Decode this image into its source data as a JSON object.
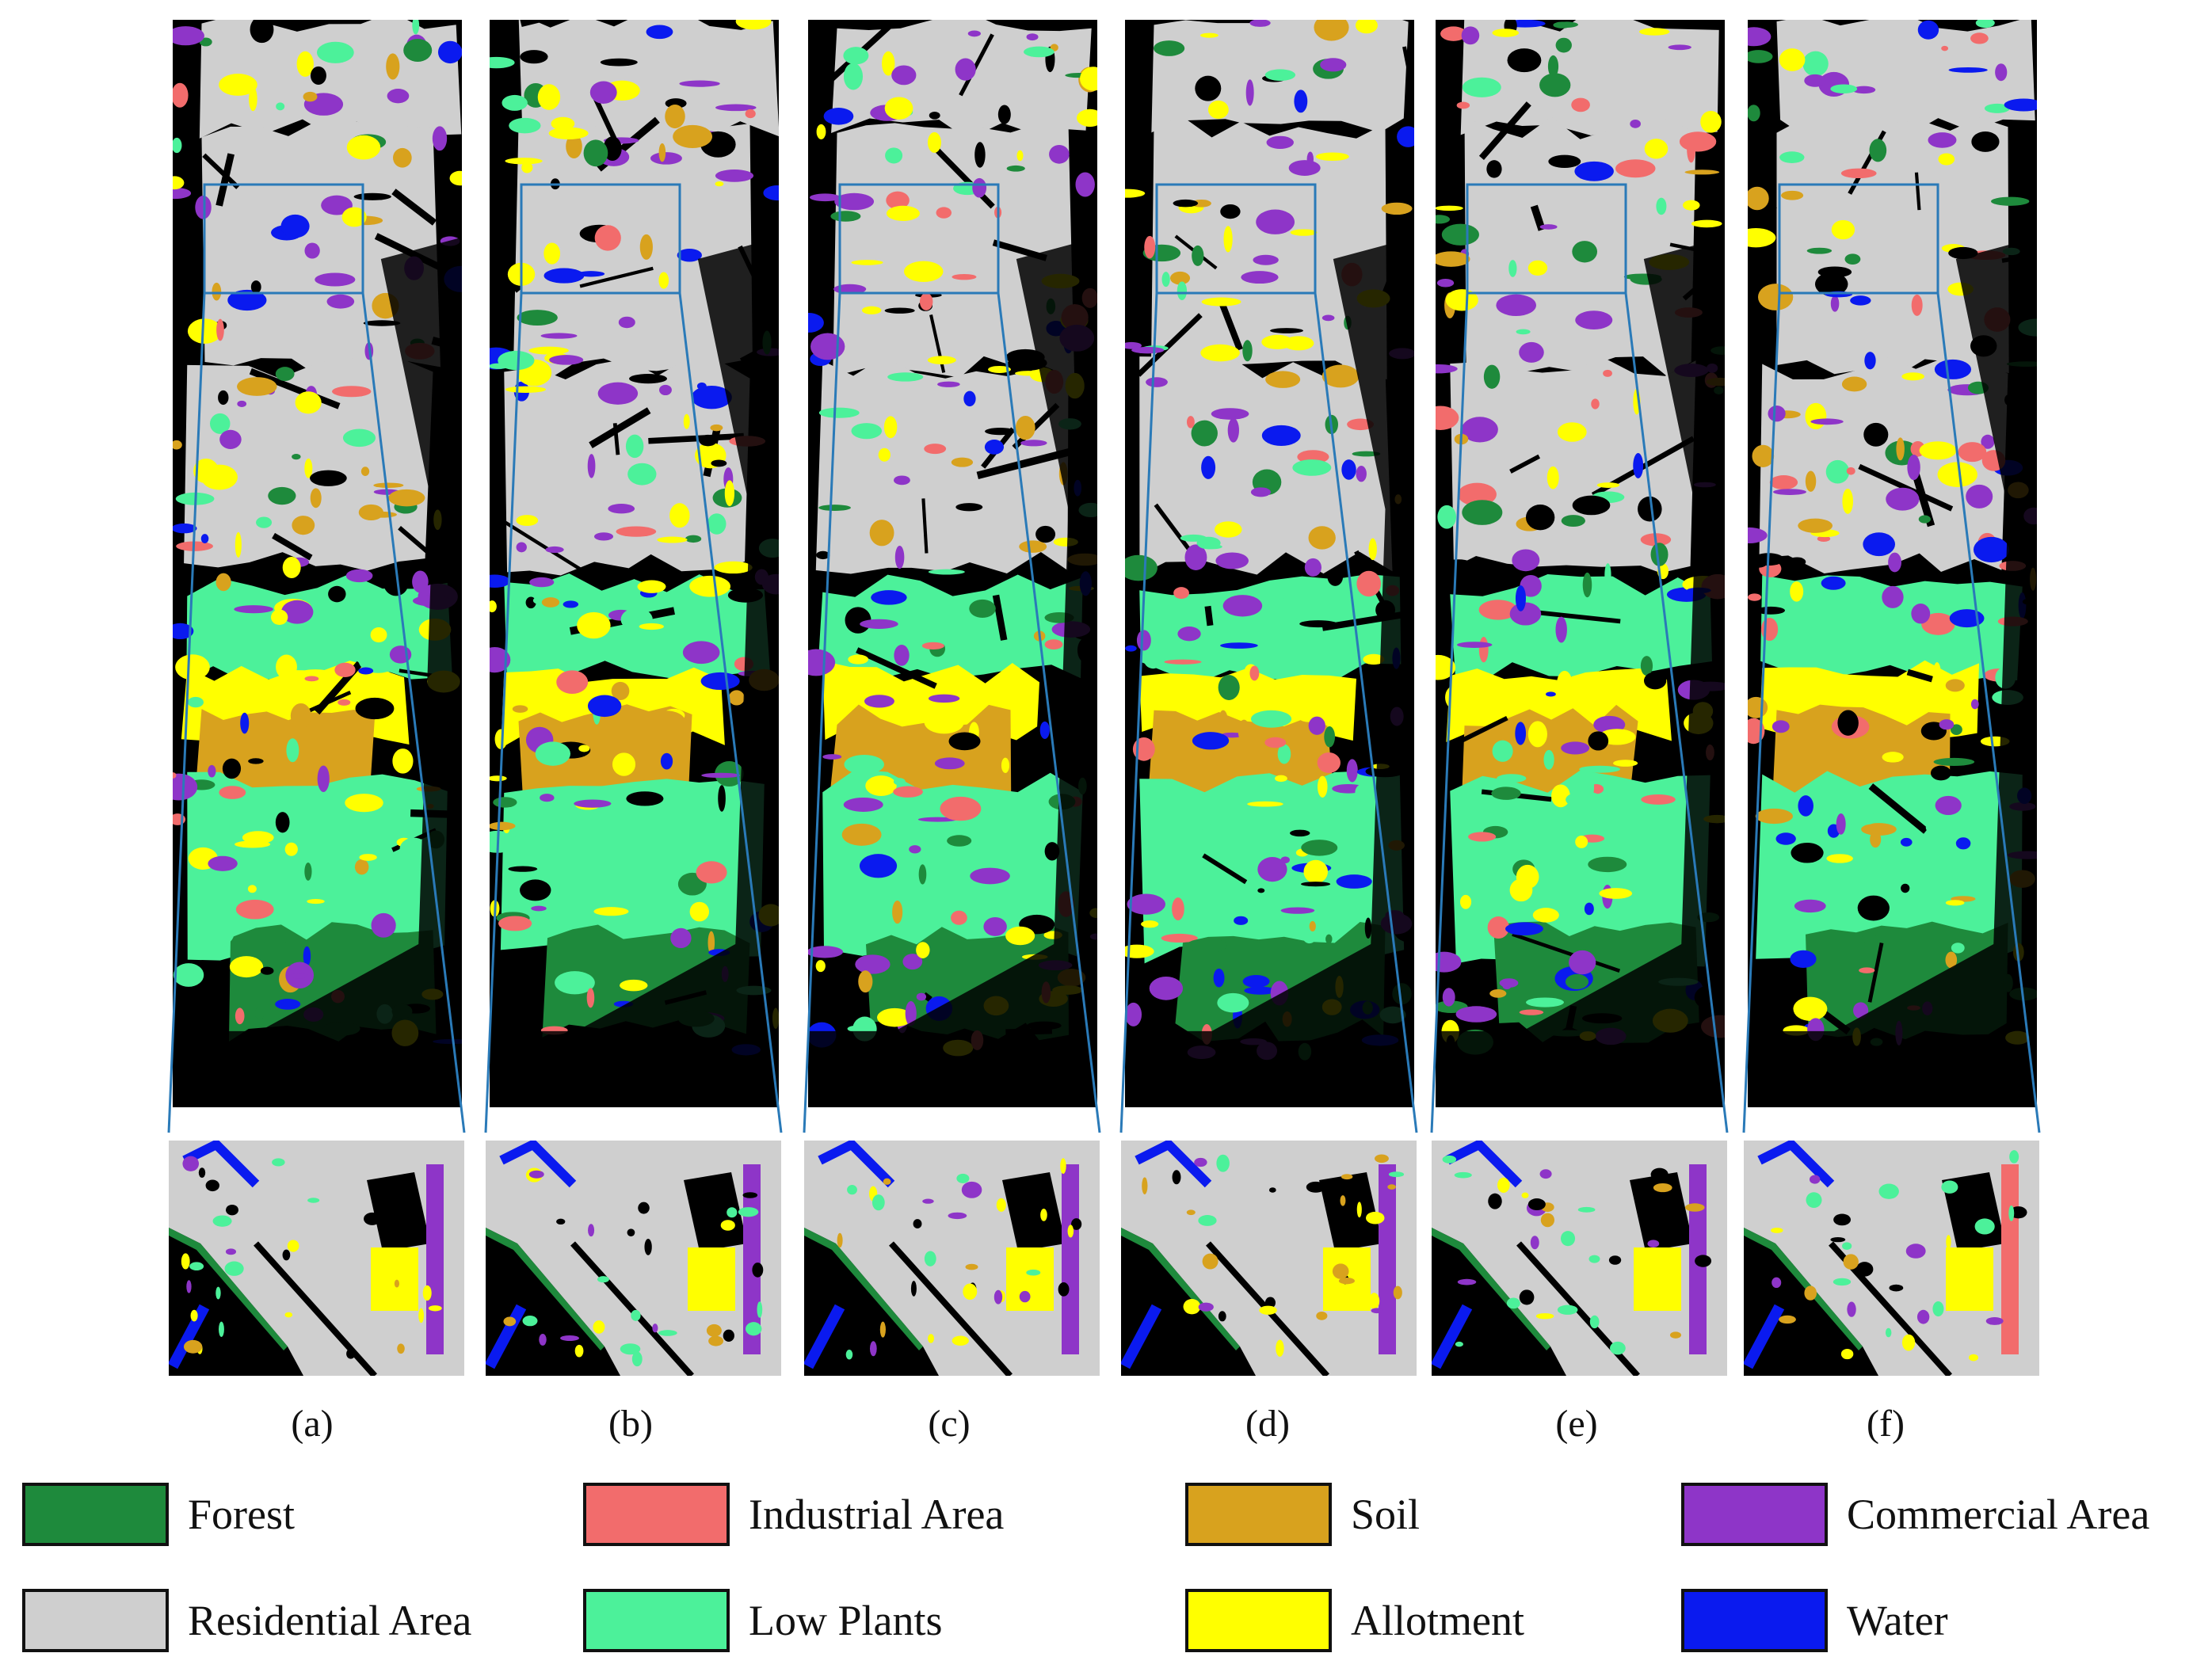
{
  "colors": {
    "forest": "#1e8a3c",
    "industrial": "#f26c6c",
    "soil": "#d8a21e",
    "commercial": "#8e35c8",
    "residential": "#cfcfcf",
    "lowplants": "#4cf19a",
    "allotment": "#ffff00",
    "water": "#0a1aef",
    "background": "#000000",
    "zoom_box": "#2a7ab8"
  },
  "panels": [
    {
      "label": "(a)"
    },
    {
      "label": "(b)"
    },
    {
      "label": "(c)"
    },
    {
      "label": "(d)"
    },
    {
      "label": "(e)"
    },
    {
      "label": "(f)"
    }
  ],
  "legend": [
    {
      "label": "Forest",
      "color_key": "forest"
    },
    {
      "label": "Industrial Area",
      "color_key": "industrial"
    },
    {
      "label": "Soil",
      "color_key": "soil"
    },
    {
      "label": "Commercial Area",
      "color_key": "commercial"
    },
    {
      "label": "Residential Area",
      "color_key": "residential"
    },
    {
      "label": "Low Plants",
      "color_key": "lowplants"
    },
    {
      "label": "Allotment",
      "color_key": "allotment"
    },
    {
      "label": "Water",
      "color_key": "water"
    }
  ]
}
